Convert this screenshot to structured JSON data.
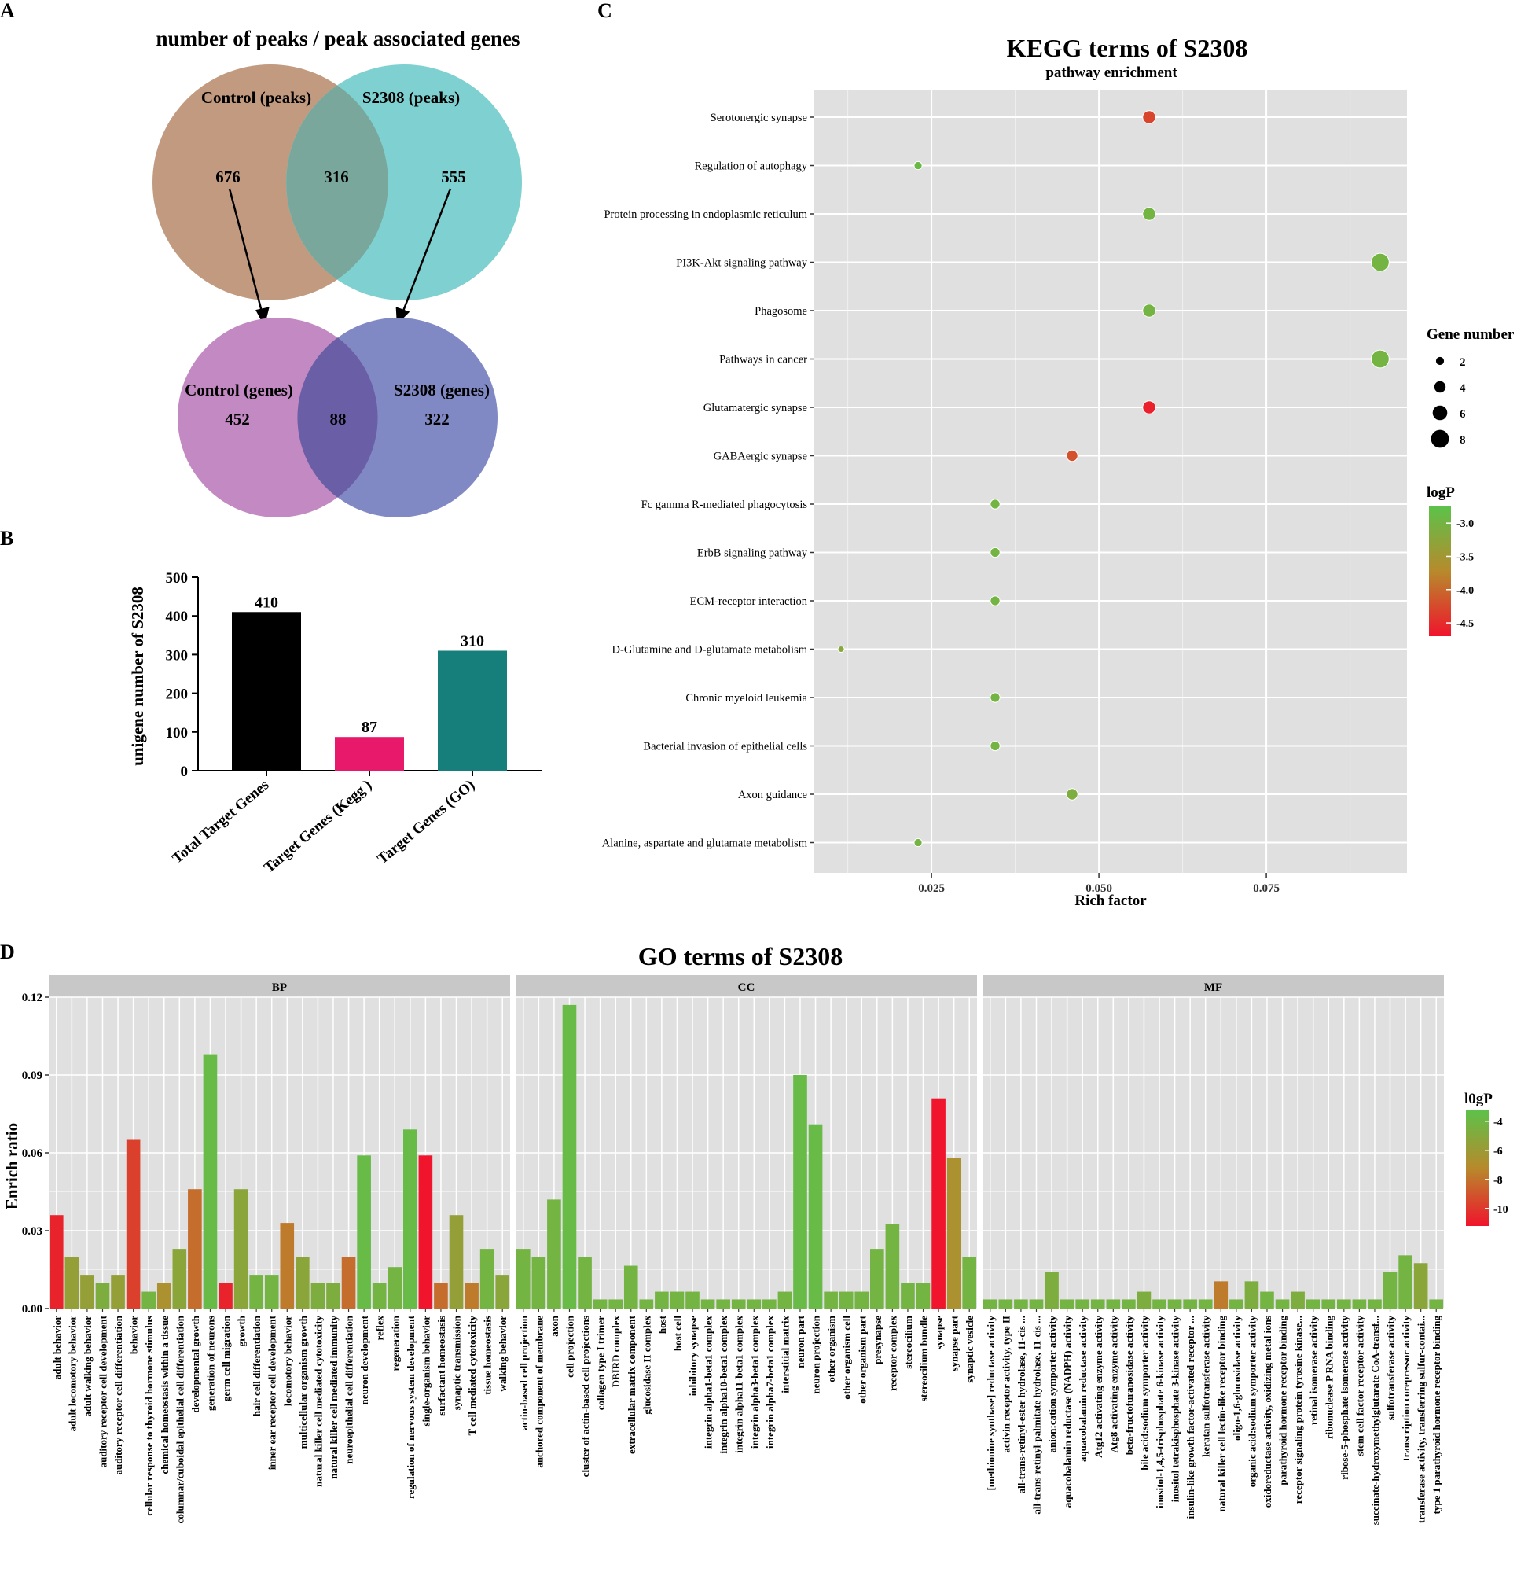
{
  "panelA": {
    "letter": "A",
    "title": "number of peaks / peak associated genes",
    "peaks": {
      "left_label": "Control (peaks)",
      "right_label": "S2308 (peaks)",
      "left_only": "676",
      "overlap": "316",
      "right_only": "555"
    },
    "genes": {
      "left_label": "Control (genes)",
      "right_label": "S2308 (genes)",
      "left_only": "452",
      "overlap": "88",
      "right_only": "322"
    },
    "colors": {
      "control_peaks": "#c19a80",
      "s2308_peaks": "#7fd0d0",
      "peaks_overlap": "#7aa79b",
      "control_genes": "#c389c2",
      "s2308_genes": "#8189c4",
      "genes_overlap": "#6a5fa6"
    }
  },
  "panelB": {
    "letter": "B",
    "chart_data": {
      "type": "bar",
      "categories": [
        "Total Target Genes",
        "Target Genes (Kegg )",
        "Target Genes (GO)"
      ],
      "values": [
        410,
        87,
        310
      ],
      "value_labels": [
        "410",
        "87",
        "310"
      ],
      "ylabel": "unigene number of  S2308",
      "ylim": [
        0,
        500
      ],
      "yticks": [
        0,
        100,
        200,
        300,
        400,
        500
      ],
      "colors": [
        "#000000",
        "#e8196a",
        "#167f7b"
      ]
    }
  },
  "panelC": {
    "letter": "C",
    "chart_data": {
      "type": "scatter",
      "title": "KEGG terms of S2308",
      "subtitle": "pathway enrichment",
      "xlabel": "Rich factor",
      "xlim": [
        0.0075,
        0.096
      ],
      "xticks": [
        0.025,
        0.05,
        0.075
      ],
      "xtick_labels": [
        "0.025",
        "0.050",
        "0.075"
      ],
      "terms": [
        "Serotonergic synapse",
        "Regulation of autophagy",
        "Protein processing in endoplasmic reticulum",
        "PI3K-Akt signaling pathway",
        "Phagosome",
        "Pathways in cancer",
        "Glutamatergic synapse",
        "GABAergic synapse",
        "Fc gamma R-mediated phagocytosis",
        "ErbB signaling pathway",
        "ECM-receptor interaction",
        "D-Glutamine and D-glutamate metabolism",
        "Chronic myeloid leukemia",
        "Bacterial invasion of epithelial cells",
        "Axon guidance",
        "Alanine, aspartate and glutamate metabolism"
      ],
      "rich_factor": [
        0.0575,
        0.023,
        0.0575,
        0.092,
        0.0575,
        0.092,
        0.0575,
        0.046,
        0.0345,
        0.0345,
        0.0345,
        0.0115,
        0.0345,
        0.0345,
        0.046,
        0.023
      ],
      "gene_number": [
        5,
        2,
        5,
        8,
        5,
        8,
        5,
        4,
        3,
        3,
        3,
        1,
        3,
        3,
        4,
        2
      ],
      "logP": [
        -4.3,
        -2.9,
        -3.0,
        -3.0,
        -3.0,
        -3.0,
        -4.6,
        -4.2,
        -3.0,
        -3.0,
        -3.0,
        -3.2,
        -3.0,
        -3.0,
        -3.1,
        -3.0
      ],
      "size_legend": {
        "title": "Gene number",
        "values": [
          2,
          4,
          6,
          8
        ],
        "labels": [
          "2",
          "4",
          "6",
          "8"
        ]
      },
      "color_legend": {
        "title": "logP",
        "ticks": [
          -3.0,
          -3.5,
          -4.0,
          -4.5
        ],
        "labels": [
          "-3.0",
          "-3.5",
          "-4.0",
          "-4.5"
        ],
        "range": [
          -4.7,
          -2.75
        ],
        "low_color": "#f0142c",
        "mid_color": "#b78a2c",
        "high_color": "#5cc24a"
      }
    }
  },
  "panelD": {
    "letter": "D",
    "chart_data": {
      "type": "bar",
      "title": "GO terms of S2308",
      "ylabel": "Enrich ratio",
      "ylim": [
        0,
        0.12
      ],
      "yticks": [
        0,
        0.03,
        0.06,
        0.09,
        0.12
      ],
      "ytick_labels": [
        "0.00",
        "0.03",
        "0.06",
        "0.09",
        "0.12"
      ],
      "color_legend": {
        "title": "l0gP",
        "ticks": [
          -4,
          -6,
          -8,
          -10
        ],
        "labels": [
          "-4",
          "-6",
          "-8",
          "-10"
        ],
        "range": [
          -11,
          -3
        ]
      },
      "facets": [
        {
          "name": "BP",
          "categories": [
            "adult behavior",
            "adult locomotory behavior",
            "adult walking behavior",
            "auditory receptor cell development",
            "auditory receptor cell differentiation",
            "behavior",
            "cellular response to thyroid hormone stimulus",
            "chemical homeostasis within a tissue",
            "columnar/cuboidal epithelial cell differentiation",
            "developmental growth",
            "generation of neurons",
            "germ cell migration",
            "growth",
            "hair cell differentiation",
            "inner ear receptor cell development",
            "locomotory behavior",
            "multicellular organism growth",
            "natural killer cell mediated cytotoxicity",
            "natural killer cell mediated immunity",
            "neuroepithelial cell differentiation",
            "neuron development",
            "reflex",
            "regeneration",
            "regulation of nervous system development",
            "single-organism behavior",
            "surfactant homeostasis",
            "synaptic transmission",
            "T cell mediated cytotoxicity",
            "tissue homeostasis",
            "walking behavior"
          ],
          "values": [
            0.036,
            0.02,
            0.013,
            0.01,
            0.013,
            0.065,
            0.0065,
            0.01,
            0.023,
            0.046,
            0.098,
            0.01,
            0.046,
            0.013,
            0.013,
            0.033,
            0.02,
            0.01,
            0.01,
            0.02,
            0.059,
            0.01,
            0.016,
            0.069,
            0.059,
            0.01,
            0.036,
            0.01,
            0.023,
            0.013
          ],
          "logP": [
            -10.5,
            -5.5,
            -5.5,
            -4.5,
            -5.5,
            -9.5,
            -4,
            -6.5,
            -5,
            -8,
            -3.5,
            -10.5,
            -5,
            -4,
            -4,
            -7.5,
            -5,
            -4.5,
            -4.5,
            -8,
            -3.5,
            -4,
            -4,
            -3.5,
            -11,
            -8,
            -5.5,
            -7.5,
            -4,
            -5
          ]
        },
        {
          "name": "CC",
          "categories": [
            "actin-based cell projection",
            "anchored component of membrane",
            "axon",
            "cell projection",
            "cluster of actin-based cell projections",
            "collagen type I trimer",
            "DBIRD complex",
            "extracellular matrix component",
            "glucosidase II complex",
            "host",
            "host cell",
            "inhibitory synapse",
            "integrin alpha1-beta1 complex",
            "integrin alpha10-beta1 complex",
            "integrin alpha11-beta1 complex",
            "integrin alpha3-beta1 complex",
            "integrin alpha7-beta1 complex",
            "interstitial matrix",
            "neuron part",
            "neuron projection",
            "other organism",
            "other organism cell",
            "other organism part",
            "presynapse",
            "receptor complex",
            "stereocilium",
            "stereocilium bundle",
            "synapse",
            "synapse part",
            "synaptic vesicle"
          ],
          "values": [
            0.023,
            0.02,
            0.042,
            0.117,
            0.02,
            0.0035,
            0.0035,
            0.0165,
            0.0035,
            0.0065,
            0.0065,
            0.0065,
            0.0035,
            0.0035,
            0.0035,
            0.0035,
            0.0035,
            0.0065,
            0.09,
            0.071,
            0.0065,
            0.0065,
            0.0065,
            0.023,
            0.0325,
            0.01,
            0.01,
            0.081,
            0.058,
            0.02
          ],
          "logP": [
            -4,
            -4,
            -4,
            -3.5,
            -4,
            -4,
            -4,
            -4,
            -4,
            -4,
            -4,
            -4,
            -4,
            -4,
            -4,
            -4,
            -4,
            -4,
            -3.5,
            -3.5,
            -4,
            -4,
            -4,
            -4,
            -4,
            -4,
            -4,
            -11,
            -6.5,
            -4
          ]
        },
        {
          "name": "MF",
          "categories": [
            "[methionine synthase] reductase activity",
            "activin receptor activity, type II",
            "all-trans-retinyl-ester hydrolase, 11-cis ...",
            "all-trans-retinyl-palmitate hydrolase, 11-cis ...",
            "anion:cation symporter activity",
            "aquacobalamin reductase (NADPH) activity",
            "aquacobalamin reductase activity",
            "Atg12 activating enzyme activity",
            "Atg8 activating enzyme activity",
            "beta-fructofuranosidase activity",
            "bile acid:sodium symporter activity",
            "inositol-1,4,5-trisphosphate 6-kinase activity",
            "inositol tetrakisphosphate 3-kinase activity",
            "insulin-like growth factor-activated receptor ...",
            "keratan sulfotransferase activity",
            "natural killer cell lectin-like receptor binding",
            "oligo-1,6-glucosidase activity",
            "organic acid:sodium symporter activity",
            "oxidoreductase activity, oxidizing metal ions",
            "parathyroid hormone receptor binding",
            "receptor signaling protein tyrosine kinase...",
            "retinal isomerase activity",
            "ribonuclease P RNA binding",
            "ribose-5-phosphate isomerase activity",
            "stem cell factor receptor activity",
            "succinate-hydroxymethylglutarate CoA-transf...",
            "sulfotransferase activity",
            "transcription corepressor activity",
            "transferase activity, transferring sulfur-contai...",
            "type 1 parathyroid hormone receptor binding"
          ],
          "values": [
            0.0035,
            0.0035,
            0.0035,
            0.0035,
            0.014,
            0.0035,
            0.0035,
            0.0035,
            0.0035,
            0.0035,
            0.0065,
            0.0035,
            0.0035,
            0.0035,
            0.0035,
            0.0105,
            0.0035,
            0.0105,
            0.0065,
            0.0035,
            0.0065,
            0.0035,
            0.0035,
            0.0035,
            0.0035,
            0.0035,
            0.014,
            0.0205,
            0.0175,
            0.0035
          ],
          "logP": [
            -4,
            -4,
            -4,
            -4,
            -4.5,
            -4,
            -4,
            -4,
            -4,
            -4,
            -4.5,
            -4,
            -4,
            -4,
            -4,
            -7.5,
            -4,
            -4.5,
            -4,
            -4,
            -4.5,
            -4,
            -4,
            -4,
            -4,
            -4,
            -4,
            -4,
            -5,
            -4
          ]
        }
      ]
    }
  }
}
